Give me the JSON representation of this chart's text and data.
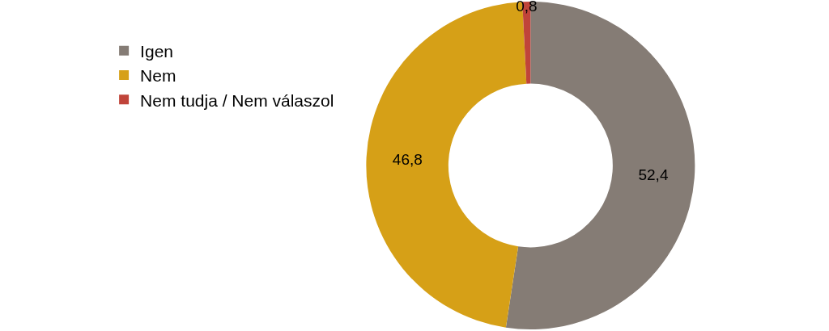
{
  "chart_data": {
    "type": "donut",
    "categories": [
      "Igen",
      "Nem",
      "Nem tudja / Nem válaszol"
    ],
    "values": [
      52.4,
      46.8,
      0.8
    ],
    "colors": [
      "#857c75",
      "#d6a017",
      "#c0443a"
    ],
    "value_labels": [
      "52,4",
      "46,8",
      "0,8"
    ],
    "legend": "left"
  }
}
